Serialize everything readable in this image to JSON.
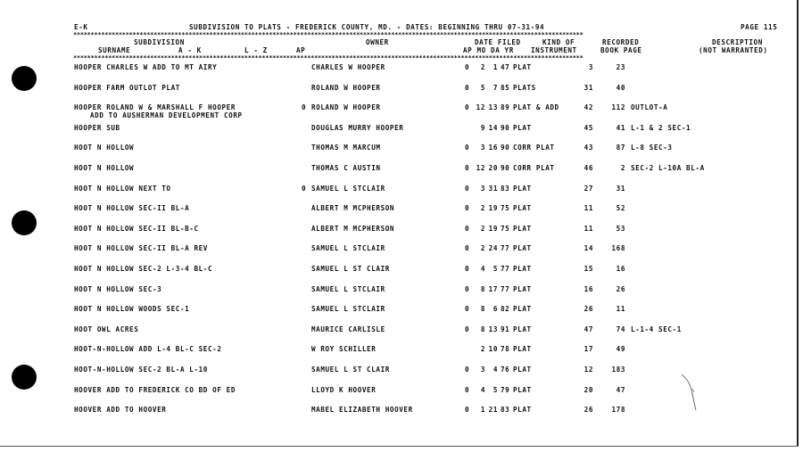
{
  "header": {
    "section": "E-K",
    "title": "SUBDIVISION TO PLATS - FREDERICK COUNTY, MD. - DATES: BEGINNING THRU 07-31-94",
    "page": "PAGE 115",
    "separator": "**************************************************************************************************************************************************"
  },
  "columns": {
    "subdivision": "SUBDIVISION",
    "surname": "SURNAME",
    "a_k": "A - K",
    "l_z": "L - Z",
    "ap1": "AP",
    "owner": "OWNER",
    "date_filed": "DATE FILED",
    "ap_mo_da_yr": "AP MO DA YR",
    "kind_of": "KIND OF",
    "instrument": "INSTRUMENT",
    "recorded": "RECORDED",
    "book_page": "BOOK PAGE",
    "description": "DESCRIPTION",
    "not_warranted": "(NOT WARRANTED)"
  },
  "rows": [
    {
      "sub": "HOOPER CHARLES W ADD TO MT AIRY",
      "sub2": "",
      "apm": "",
      "owner": "CHARLES W HOOPER",
      "ap": "0",
      "mo": "2",
      "da": "1",
      "yr": "47",
      "kind": "PLAT",
      "book": "3",
      "page": "23",
      "desc": ""
    },
    {
      "sub": "HOOPER FARM OUTLOT PLAT",
      "sub2": "",
      "apm": "",
      "owner": "ROLAND W HOOPER",
      "ap": "0",
      "mo": "5",
      "da": "7",
      "yr": "85",
      "kind": "PLATS",
      "book": "31",
      "page": "40",
      "desc": ""
    },
    {
      "sub": "HOOPER ROLAND W & MARSHALL F HOOPER",
      "sub2": "ADD TO AUSHERMAN DEVELOPMENT CORP",
      "apm": "0",
      "owner": "ROLAND W HOOPER",
      "ap": "0",
      "mo": "12",
      "da": "13",
      "yr": "89",
      "kind": "PLAT & ADD",
      "book": "42",
      "page": "112",
      "desc": "OUTLOT-A"
    },
    {
      "sub": "HOOPER SUB",
      "sub2": "",
      "apm": "",
      "owner": "DOUGLAS MURRY HOOPER",
      "ap": "",
      "mo": "9",
      "da": "14",
      "yr": "90",
      "kind": "PLAT",
      "book": "45",
      "page": "41",
      "desc": "L-1 & 2 SEC-1"
    },
    {
      "sub": "HOOT N HOLLOW",
      "sub2": "",
      "apm": "",
      "owner": "THOMAS M MARCUM",
      "ap": "0",
      "mo": "3",
      "da": "16",
      "yr": "90",
      "kind": "CORR PLAT",
      "book": "43",
      "page": "87",
      "desc": "L-8 SEC-3"
    },
    {
      "sub": "HOOT N HOLLOW",
      "sub2": "",
      "apm": "",
      "owner": "THOMAS C AUSTIN",
      "ap": "0",
      "mo": "12",
      "da": "20",
      "yr": "90",
      "kind": "CORR PLAT",
      "book": "46",
      "page": "2",
      "desc": "SEC-2 L-10A BL-A"
    },
    {
      "sub": "HOOT N HOLLOW NEXT TO",
      "sub2": "",
      "apm": "0",
      "owner": "SAMUEL L STCLAIR",
      "ap": "0",
      "mo": "3",
      "da": "31",
      "yr": "83",
      "kind": "PLAT",
      "book": "27",
      "page": "31",
      "desc": ""
    },
    {
      "sub": "HOOT N HOLLOW SEC-II BL-A",
      "sub2": "",
      "apm": "",
      "owner": "ALBERT M MCPHERSON",
      "ap": "0",
      "mo": "2",
      "da": "19",
      "yr": "75",
      "kind": "PLAT",
      "book": "11",
      "page": "52",
      "desc": ""
    },
    {
      "sub": "HOOT N HOLLOW SEC-II BL-B-C",
      "sub2": "",
      "apm": "",
      "owner": "ALBERT M MCPHERSON",
      "ap": "0",
      "mo": "2",
      "da": "19",
      "yr": "75",
      "kind": "PLAT",
      "book": "11",
      "page": "53",
      "desc": ""
    },
    {
      "sub": "HOOT N HOLLOW SEC-II BL-A REV",
      "sub2": "",
      "apm": "",
      "owner": "SAMUEL L STCLAIR",
      "ap": "0",
      "mo": "2",
      "da": "24",
      "yr": "77",
      "kind": "PLAT",
      "book": "14",
      "page": "168",
      "desc": ""
    },
    {
      "sub": "HOOT N HOLLOW SEC-2 L-3-4 BL-C",
      "sub2": "",
      "apm": "",
      "owner": "SAMUEL L ST CLAIR",
      "ap": "0",
      "mo": "4",
      "da": "5",
      "yr": "77",
      "kind": "PLAT",
      "book": "15",
      "page": "16",
      "desc": ""
    },
    {
      "sub": "HOOT N HOLLOW SEC-3",
      "sub2": "",
      "apm": "",
      "owner": "SAMUEL L STCLAIR",
      "ap": "0",
      "mo": "8",
      "da": "17",
      "yr": "77",
      "kind": "PLAT",
      "book": "16",
      "page": "26",
      "desc": ""
    },
    {
      "sub": "HOOT N HOLLOW WOODS SEC-1",
      "sub2": "",
      "apm": "",
      "owner": "SAMUEL L STCLAIR",
      "ap": "0",
      "mo": "8",
      "da": "6",
      "yr": "82",
      "kind": "PLAT",
      "book": "26",
      "page": "11",
      "desc": ""
    },
    {
      "sub": "HOOT OWL ACRES",
      "sub2": "",
      "apm": "",
      "owner": "MAURICE CARLISLE",
      "ap": "0",
      "mo": "8",
      "da": "13",
      "yr": "91",
      "kind": "PLAT",
      "book": "47",
      "page": "74",
      "desc": "L-1-4 SEC-1"
    },
    {
      "sub": "HOOT-N-HOLLOW ADD L-4 BL-C SEC-2",
      "sub2": "",
      "apm": "",
      "owner": "W ROY SCHILLER",
      "ap": "",
      "mo": "2",
      "da": "10",
      "yr": "78",
      "kind": "PLAT",
      "book": "17",
      "page": "49",
      "desc": ""
    },
    {
      "sub": "HOOT-N-HOLLOW SEC-2 BL-A L-10",
      "sub2": "",
      "apm": "",
      "owner": "SAMUEL L ST CLAIR",
      "ap": "0",
      "mo": "3",
      "da": "4",
      "yr": "76",
      "kind": "PLAT",
      "book": "12",
      "page": "183",
      "desc": ""
    },
    {
      "sub": "HOOVER ADD TO FREDERICK CO BD OF ED",
      "sub2": "",
      "apm": "",
      "owner": "LLOYD K HOOVER",
      "ap": "0",
      "mo": "4",
      "da": "5",
      "yr": "79",
      "kind": "PLAT",
      "book": "20",
      "page": "47",
      "desc": ""
    },
    {
      "sub": "HOOVER ADD TO HOOVER",
      "sub2": "",
      "apm": "",
      "owner": "MABEL ELIZABETH HOOVER",
      "ap": "0",
      "mo": "1",
      "da": "21",
      "yr": "83",
      "kind": "PLAT",
      "book": "26",
      "page": "178",
      "desc": ""
    }
  ]
}
